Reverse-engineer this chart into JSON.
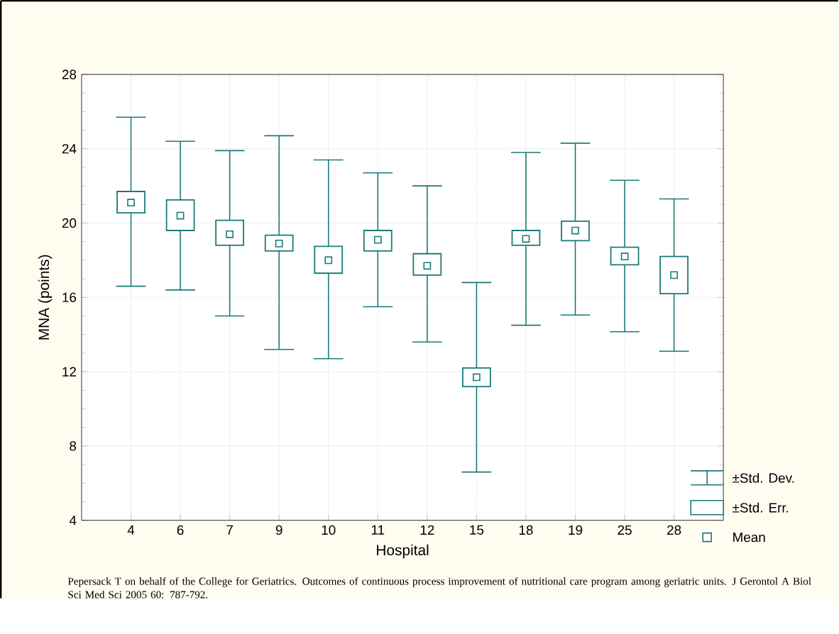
{
  "chart_data": {
    "type": "box",
    "xlabel": "Hospital",
    "ylabel": "MNA (points)",
    "categories": [
      "4",
      "6",
      "7",
      "9",
      "10",
      "11",
      "12",
      "15",
      "18",
      "19",
      "25",
      "28"
    ],
    "boxes": [
      {
        "low": 16.6,
        "q1": 20.55,
        "median": 21.1,
        "q3": 21.7,
        "high": 25.7
      },
      {
        "low": 16.4,
        "q1": 19.6,
        "median": 20.4,
        "q3": 21.25,
        "high": 24.4
      },
      {
        "low": 15.0,
        "q1": 18.8,
        "median": 19.4,
        "q3": 20.15,
        "high": 23.9
      },
      {
        "low": 13.2,
        "q1": 18.5,
        "median": 18.9,
        "q3": 19.35,
        "high": 24.7
      },
      {
        "low": 12.7,
        "q1": 17.3,
        "median": 18.0,
        "q3": 18.75,
        "high": 23.4
      },
      {
        "low": 15.5,
        "q1": 18.5,
        "median": 19.1,
        "q3": 19.6,
        "high": 22.7
      },
      {
        "low": 13.6,
        "q1": 17.2,
        "median": 17.7,
        "q3": 18.35,
        "high": 22.0
      },
      {
        "low": 6.6,
        "q1": 11.2,
        "median": 11.7,
        "q3": 12.2,
        "high": 16.8
      },
      {
        "low": 14.5,
        "q1": 18.8,
        "median": 19.15,
        "q3": 19.6,
        "high": 23.8
      },
      {
        "low": 15.05,
        "q1": 19.05,
        "median": 19.6,
        "q3": 20.1,
        "high": 24.3
      },
      {
        "low": 14.15,
        "q1": 17.75,
        "median": 18.2,
        "q3": 18.7,
        "high": 22.3
      },
      {
        "low": 13.1,
        "q1": 16.2,
        "median": 17.2,
        "q3": 18.2,
        "high": 21.3
      }
    ],
    "color": "#1a7a78",
    "marker": "square",
    "grid": true,
    "ylim": [
      4,
      28
    ],
    "yticks": [
      4,
      8,
      12,
      16,
      20,
      24,
      28
    ],
    "annotations": [
      "±Std. Dev.",
      "±Std. Err.",
      "Mean",
      "Pepersack T on behalf of the College for Geriatrics. Outcomes of continuous process improvement of nutritional care program among geriatric units. J Gerontol A Biol Sci Med Sci 2005 60: 787-792."
    ]
  }
}
